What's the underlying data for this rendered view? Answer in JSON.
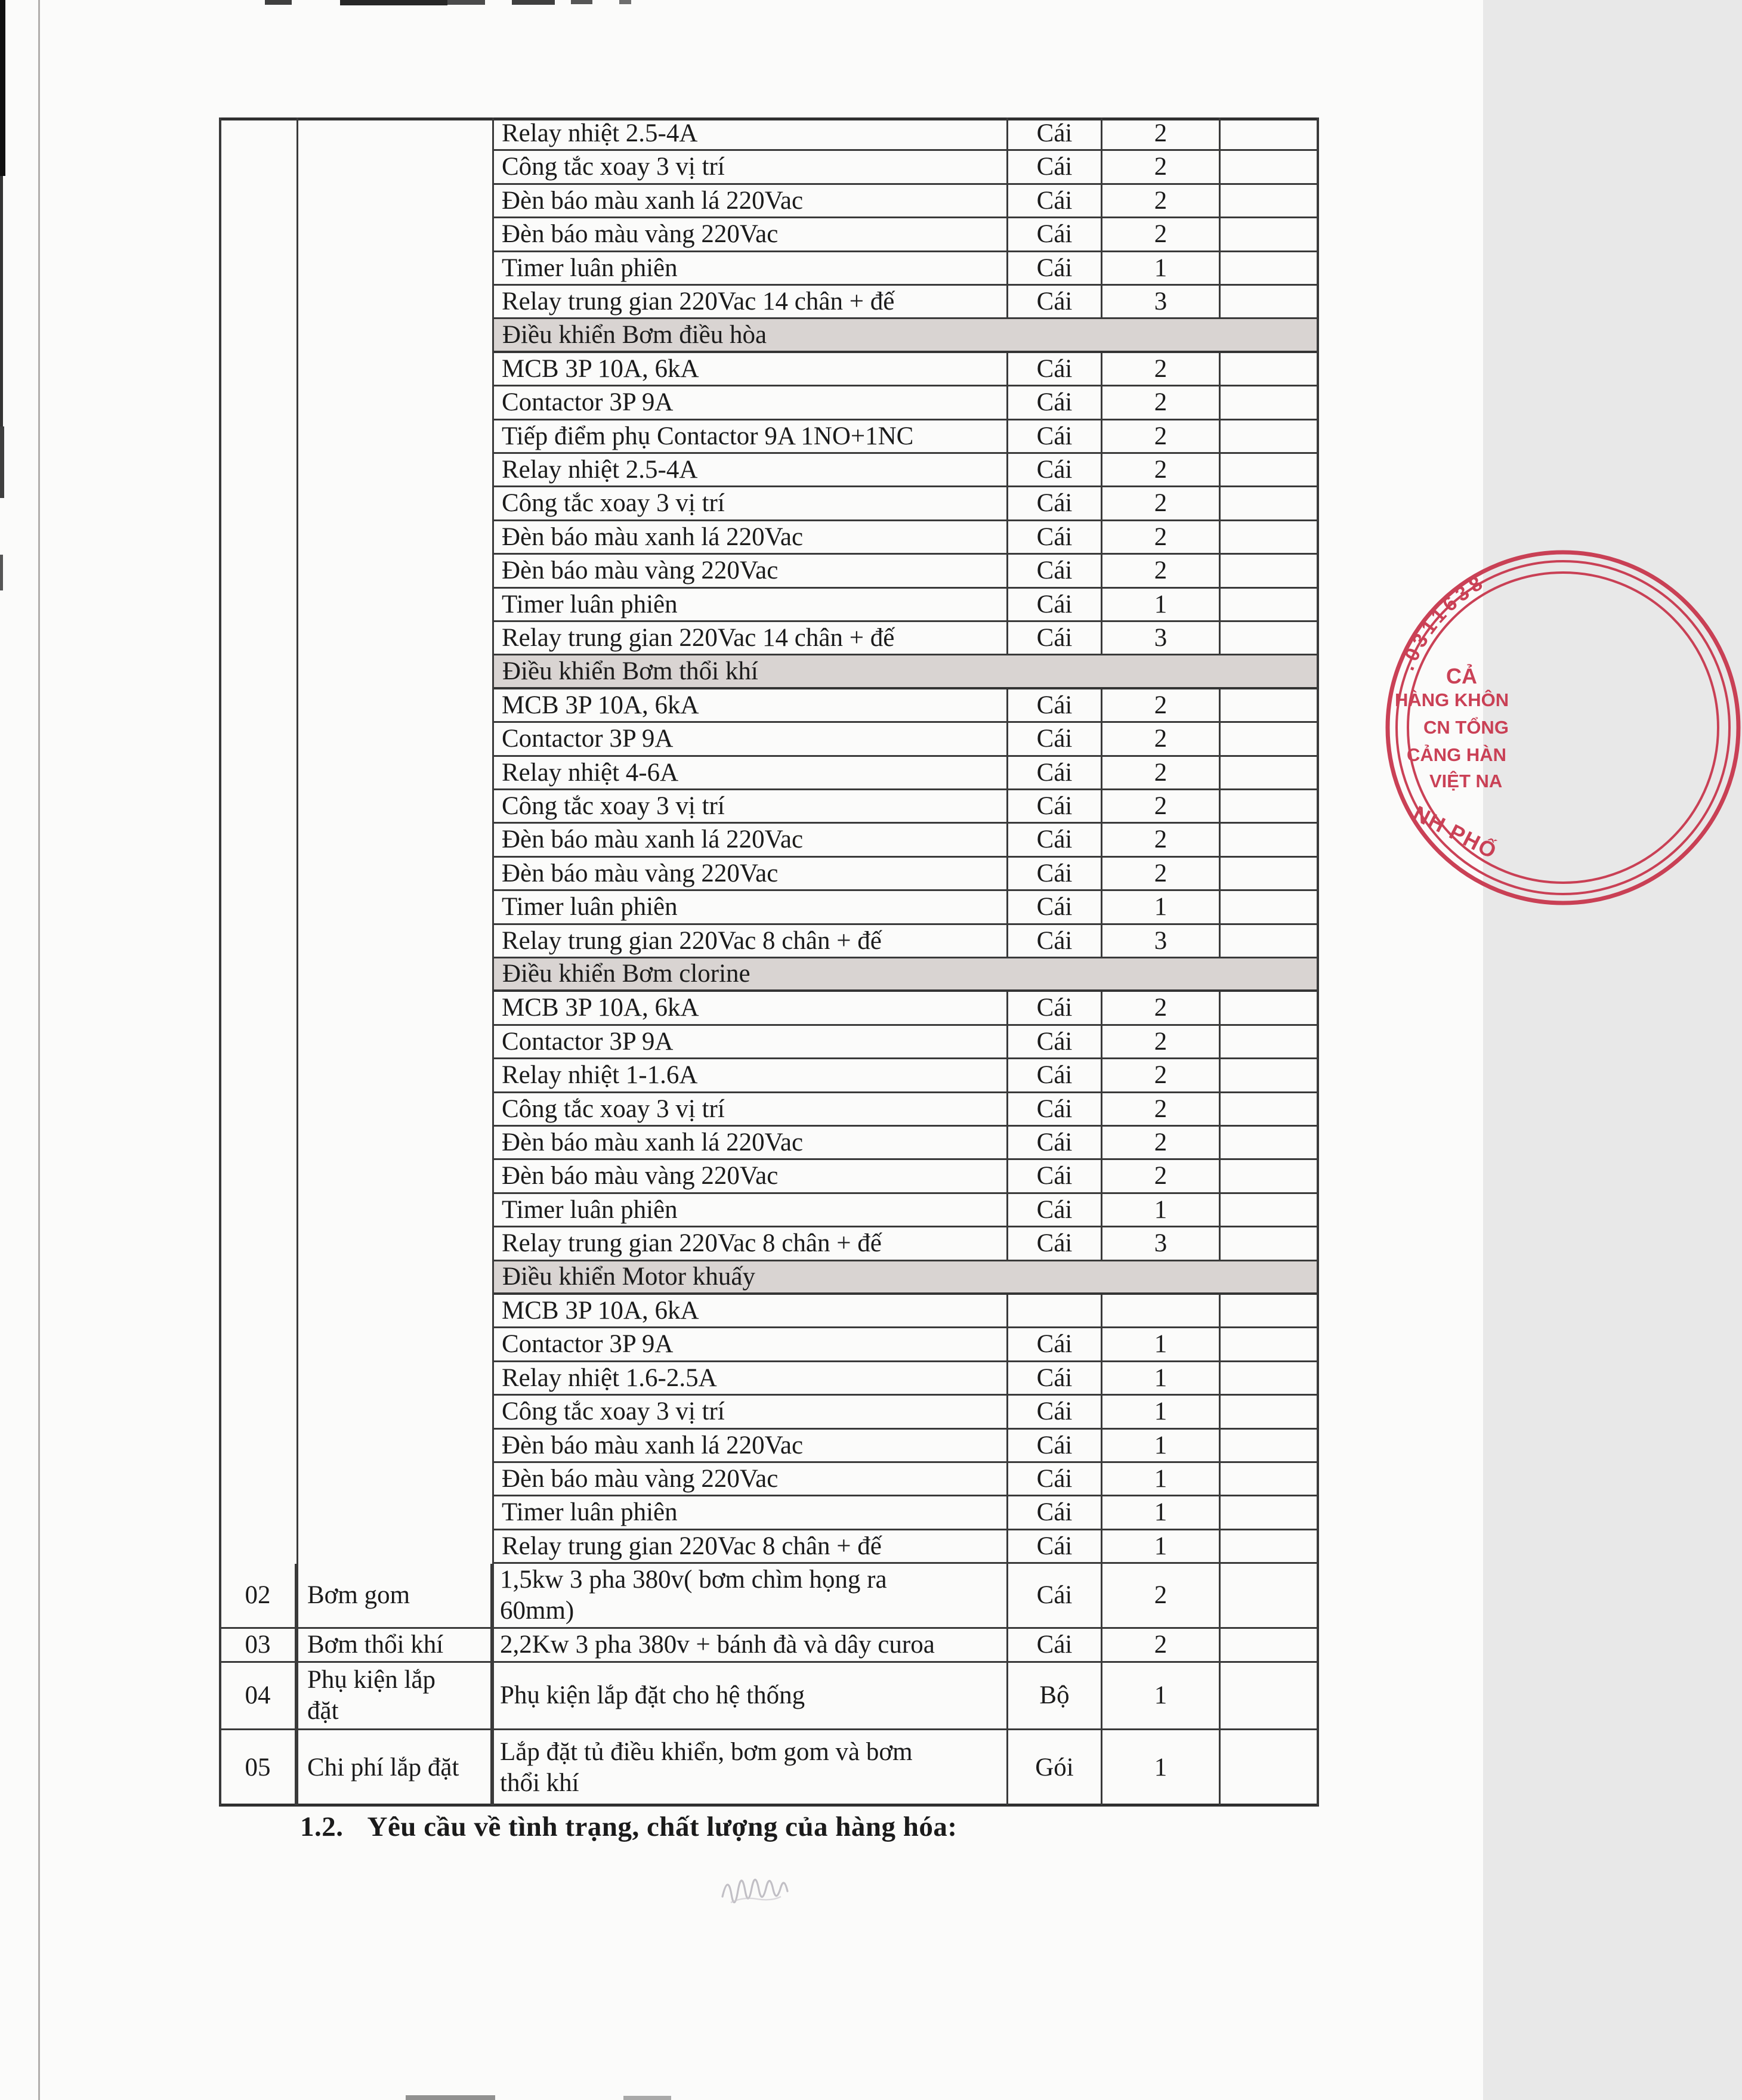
{
  "table": {
    "upper_rows": [
      {
        "type": "item",
        "desc": "Relay nhiệt 2.5-4A",
        "unit": "Cái",
        "qty": "2"
      },
      {
        "type": "item",
        "desc": "Công tắc xoay 3 vị trí",
        "unit": "Cái",
        "qty": "2"
      },
      {
        "type": "item",
        "desc": "Đèn báo màu xanh lá 220Vac",
        "unit": "Cái",
        "qty": "2"
      },
      {
        "type": "item",
        "desc": "Đèn báo màu vàng 220Vac",
        "unit": "Cái",
        "qty": "2"
      },
      {
        "type": "item",
        "desc": "Timer luân phiên",
        "unit": "Cái",
        "qty": "1"
      },
      {
        "type": "item",
        "desc": "Relay trung gian 220Vac 14 chân + đế",
        "unit": "Cái",
        "qty": "3"
      },
      {
        "type": "section",
        "label": "Điều khiển Bơm điều hòa"
      },
      {
        "type": "item",
        "desc": "MCB 3P 10A, 6kA",
        "unit": "Cái",
        "qty": "2"
      },
      {
        "type": "item",
        "desc": "Contactor 3P 9A",
        "unit": "Cái",
        "qty": "2"
      },
      {
        "type": "item",
        "desc": "Tiếp điểm phụ Contactor 9A 1NO+1NC",
        "unit": "Cái",
        "qty": "2"
      },
      {
        "type": "item",
        "desc": "Relay nhiệt 2.5-4A",
        "unit": "Cái",
        "qty": "2"
      },
      {
        "type": "item",
        "desc": "Công tắc xoay 3 vị trí",
        "unit": "Cái",
        "qty": "2"
      },
      {
        "type": "item",
        "desc": "Đèn báo màu xanh lá 220Vac",
        "unit": "Cái",
        "qty": "2"
      },
      {
        "type": "item",
        "desc": "Đèn báo màu vàng 220Vac",
        "unit": "Cái",
        "qty": "2"
      },
      {
        "type": "item",
        "desc": "Timer luân phiên",
        "unit": "Cái",
        "qty": "1"
      },
      {
        "type": "item",
        "desc": "Relay trung gian 220Vac 14 chân + đế",
        "unit": "Cái",
        "qty": "3"
      },
      {
        "type": "section",
        "label": "Điều khiển Bơm thổi khí"
      },
      {
        "type": "item",
        "desc": "MCB 3P 10A, 6kA",
        "unit": "Cái",
        "qty": "2"
      },
      {
        "type": "item",
        "desc": "Contactor 3P 9A",
        "unit": "Cái",
        "qty": "2"
      },
      {
        "type": "item",
        "desc": "Relay nhiệt 4-6A",
        "unit": "Cái",
        "qty": "2"
      },
      {
        "type": "item",
        "desc": "Công tắc xoay 3 vị trí",
        "unit": "Cái",
        "qty": "2"
      },
      {
        "type": "item",
        "desc": "Đèn báo màu xanh lá 220Vac",
        "unit": "Cái",
        "qty": "2"
      },
      {
        "type": "item",
        "desc": "Đèn báo màu vàng 220Vac",
        "unit": "Cái",
        "qty": "2"
      },
      {
        "type": "item",
        "desc": "Timer luân phiên",
        "unit": "Cái",
        "qty": "1"
      },
      {
        "type": "item",
        "desc": "Relay trung gian 220Vac 8 chân + đế",
        "unit": "Cái",
        "qty": "3"
      },
      {
        "type": "section",
        "label": "Điều khiển Bơm clorine"
      },
      {
        "type": "item",
        "desc": "MCB 3P 10A, 6kA",
        "unit": "Cái",
        "qty": "2"
      },
      {
        "type": "item",
        "desc": "Contactor 3P 9A",
        "unit": "Cái",
        "qty": "2"
      },
      {
        "type": "item",
        "desc": "Relay nhiệt 1-1.6A",
        "unit": "Cái",
        "qty": "2"
      },
      {
        "type": "item",
        "desc": "Công tắc xoay 3 vị trí",
        "unit": "Cái",
        "qty": "2"
      },
      {
        "type": "item",
        "desc": "Đèn báo màu xanh lá 220Vac",
        "unit": "Cái",
        "qty": "2"
      },
      {
        "type": "item",
        "desc": "Đèn báo màu vàng 220Vac",
        "unit": "Cái",
        "qty": "2"
      },
      {
        "type": "item",
        "desc": "Timer luân phiên",
        "unit": "Cái",
        "qty": "1"
      },
      {
        "type": "item",
        "desc": "Relay trung gian 220Vac 8 chân + đế",
        "unit": "Cái",
        "qty": "3"
      },
      {
        "type": "section",
        "label": "Điều khiển Motor khuấy"
      },
      {
        "type": "item",
        "desc": "MCB 3P 10A, 6kA",
        "unit": "",
        "qty": ""
      },
      {
        "type": "item",
        "desc": "Contactor 3P 9A",
        "unit": "Cái",
        "qty": "1"
      },
      {
        "type": "item",
        "desc": "Relay nhiệt 1.6-2.5A",
        "unit": "Cái",
        "qty": "1"
      },
      {
        "type": "item",
        "desc": "Công tắc xoay 3 vị trí",
        "unit": "Cái",
        "qty": "1"
      },
      {
        "type": "item",
        "desc": "Đèn báo màu xanh lá 220Vac",
        "unit": "Cái",
        "qty": "1"
      },
      {
        "type": "item",
        "desc": "Đèn báo màu vàng 220Vac",
        "unit": "Cái",
        "qty": "1"
      },
      {
        "type": "item",
        "desc": "Timer luân phiên",
        "unit": "Cái",
        "qty": "1"
      },
      {
        "type": "item",
        "desc": "Relay trung gian 220Vac 8 chân + đế",
        "unit": "Cái",
        "qty": "1"
      }
    ],
    "bottom_rows": [
      {
        "stt": "02",
        "name": "Bơm gom",
        "desc": [
          "1,5kw 3 pha 380v( bơm chìm họng ra",
          "60mm)"
        ],
        "unit": "Cái",
        "qty": "2"
      },
      {
        "stt": "03",
        "name": "Bơm thổi khí",
        "desc": "2,2Kw 3 pha 380v + bánh đà và dây curoa",
        "unit": "Cái",
        "qty": "2"
      },
      {
        "stt": "04",
        "name": [
          "Phụ kiện lắp",
          "đặt"
        ],
        "desc": "Phụ kiện lắp đặt cho hệ thống",
        "unit": "Bộ",
        "qty": "1"
      },
      {
        "stt": "05",
        "name": "Chi phí lắp đặt",
        "desc": [
          "Lắp đặt tủ điều khiển, bơm gom và bơm",
          "thổi khí"
        ],
        "unit": "Gói",
        "qty": "1"
      }
    ]
  },
  "footer": {
    "number": "1.2.",
    "title": "Yêu cầu về tình trạng, chất lượng của hàng hóa:"
  },
  "stamp": {
    "arc_number": ".0311638",
    "lines": [
      "CẢ",
      "HÀNG KHÔN",
      "CN TỔNG",
      "CẢNG HÀN",
      "VIỆT NA"
    ],
    "bottom_arc": "NH PHỐ"
  },
  "colors": {
    "table_border": "#3a3a3a",
    "section_band": "#d9d4d2",
    "stamp_red": "#c7344a",
    "text": "#1b1b1b"
  }
}
